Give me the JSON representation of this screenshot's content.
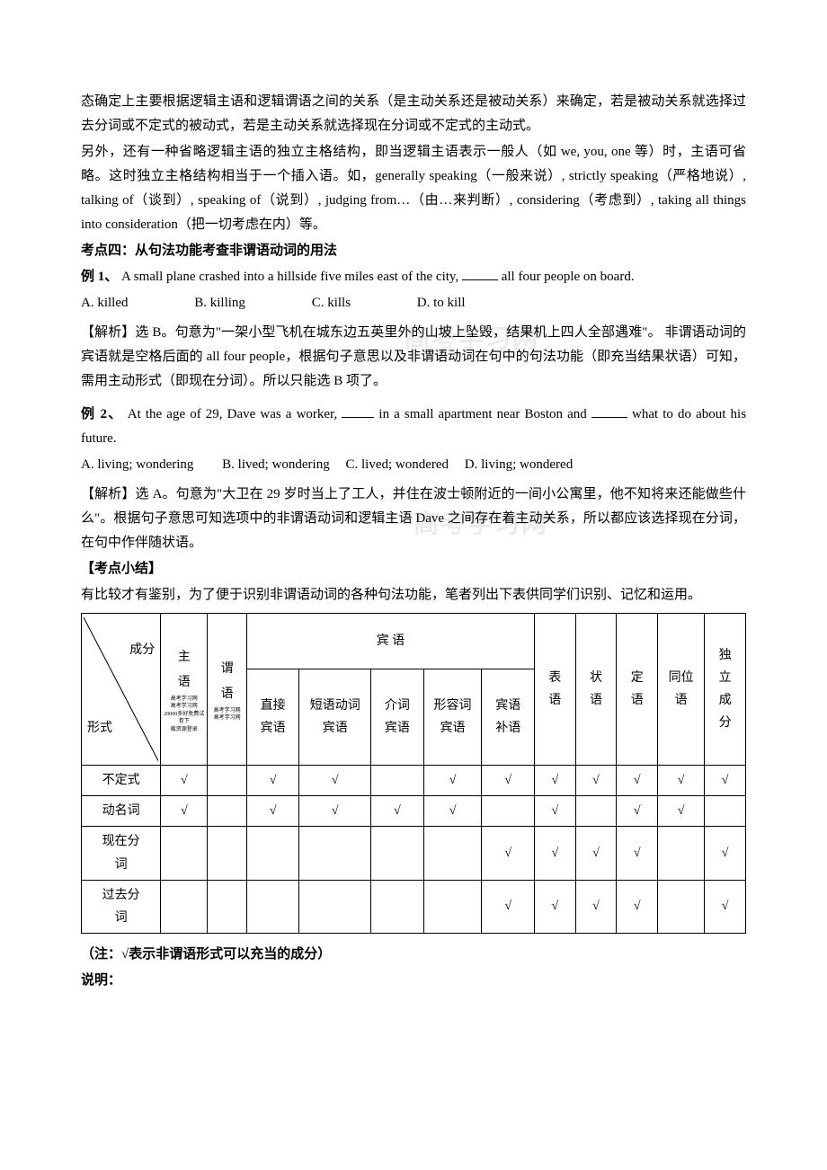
{
  "intro_paras": [
    "态确定上主要根据逻辑主语和逻辑谓语之间的关系（是主动关系还是被动关系）来确定，若是被动关系就选择过去分词或不定式的被动式，若是主动关系就选择现在分词或不定式的主动式。",
    "另外，还有一种省略逻辑主语的独立主格结构，即当逻辑主语表示一般人（如 we, you, one 等）时，主语可省略。这时独立主格结构相当于一个插入语。如，generally speaking（一般来说）, strictly speaking（严格地说）, talking of（谈到）, speaking of（说到）, judging from…（由…来判断）, considering（考虑到）, taking all things into consideration（把一切考虑在内）等。"
  ],
  "kd4_heading": "考点四：从句法功能考查非谓语动词的用法",
  "ex1": {
    "label": "例 1、",
    "pre": "  A small plane crashed into a hillside five miles east of the city, ",
    "post": "all four people on board.",
    "choices": {
      "A": "A. killed",
      "B": "B. killing",
      "C": "C. kills",
      "D": "D. to kill"
    },
    "analysis": "【解析】选 B。句意为\"一架小型飞机在城东边五英里外的山坡上坠毁，结果机上四人全部遇难\"。  非谓语动词的宾语就是空格后面的 all four people，根据句子意思以及非谓语动词在句中的句法功能（即充当结果状语）可知，需用主动形式（即现在分词）。所以只能选 B 项了。"
  },
  "ex2": {
    "label": "例 2、",
    "pre": "At the age of 29, Dave was a worker, ",
    "mid": "  in a small apartment near Boston and ",
    "post": " what to do about his future.",
    "choices": {
      "A": "A. living; wondering",
      "B": "B. lived; wondering",
      "C": "C. lived; wondered",
      "D": "D. living; wondered"
    },
    "analysis": "【解析】选 A。句意为\"大卫在 29 岁时当上了工人，并住在波士顿附近的一间小公寓里，他不知将来还能做些什么\"。根据句子意思可知选项中的非谓语动词和逻辑主语 Dave 之间存在着主动关系，所以都应该选择现在分词，在句中作伴随状语。"
  },
  "kdxj_heading": "【考点小结】",
  "kdxj_text": "有比较才有鉴别，为了便于识别非谓语动词的各种句法功能，笔者列出下表供同学们识别、记忆和运用。",
  "watermark_text": "高考学习网",
  "table": {
    "diag_top": "成分",
    "diag_bot": "形式",
    "col_subject_main": "主\n语",
    "col_subject_tiny": "高考学习网\n高考学习网\n20000多好免费试卷下\n载资源登录",
    "col_pred_main": "谓\n语",
    "col_pred_tiny": "高考学习网\n高考学习网",
    "col_obj_group": "宾 语",
    "col_obj_direct": "直接\n宾语",
    "col_obj_phrasal": "短语动词\n宾语",
    "col_obj_prep": "介词\n宾语",
    "col_obj_adj": "形容词\n宾语",
    "col_obj_comp": "宾语\n补语",
    "col_pred2": "表\n语",
    "col_adv": "状\n语",
    "col_attr": "定\n语",
    "col_appo": "同位\n语",
    "col_indep": "独\n立\n成\n分",
    "rows": [
      {
        "name": "不定式",
        "cells": [
          "√",
          "",
          "√",
          "√",
          "",
          "√",
          "√",
          "√",
          "√",
          "√",
          "√",
          "√"
        ]
      },
      {
        "name": "动名词",
        "cells": [
          "√",
          "",
          "√",
          "√",
          "√",
          "√",
          "",
          "√",
          "",
          "√",
          "√",
          ""
        ]
      },
      {
        "name": "现在分\n词",
        "cells": [
          "",
          "",
          "",
          "",
          "",
          "",
          "√",
          "√",
          "√",
          "√",
          "",
          "√"
        ]
      },
      {
        "name": "过去分\n词",
        "cells": [
          "",
          "",
          "",
          "",
          "",
          "",
          "√",
          "√",
          "√",
          "√",
          "",
          "√"
        ]
      }
    ],
    "check": "√"
  },
  "note": "（注：√表示非谓语形式可以充当的成分）",
  "explain_heading": "说明："
}
